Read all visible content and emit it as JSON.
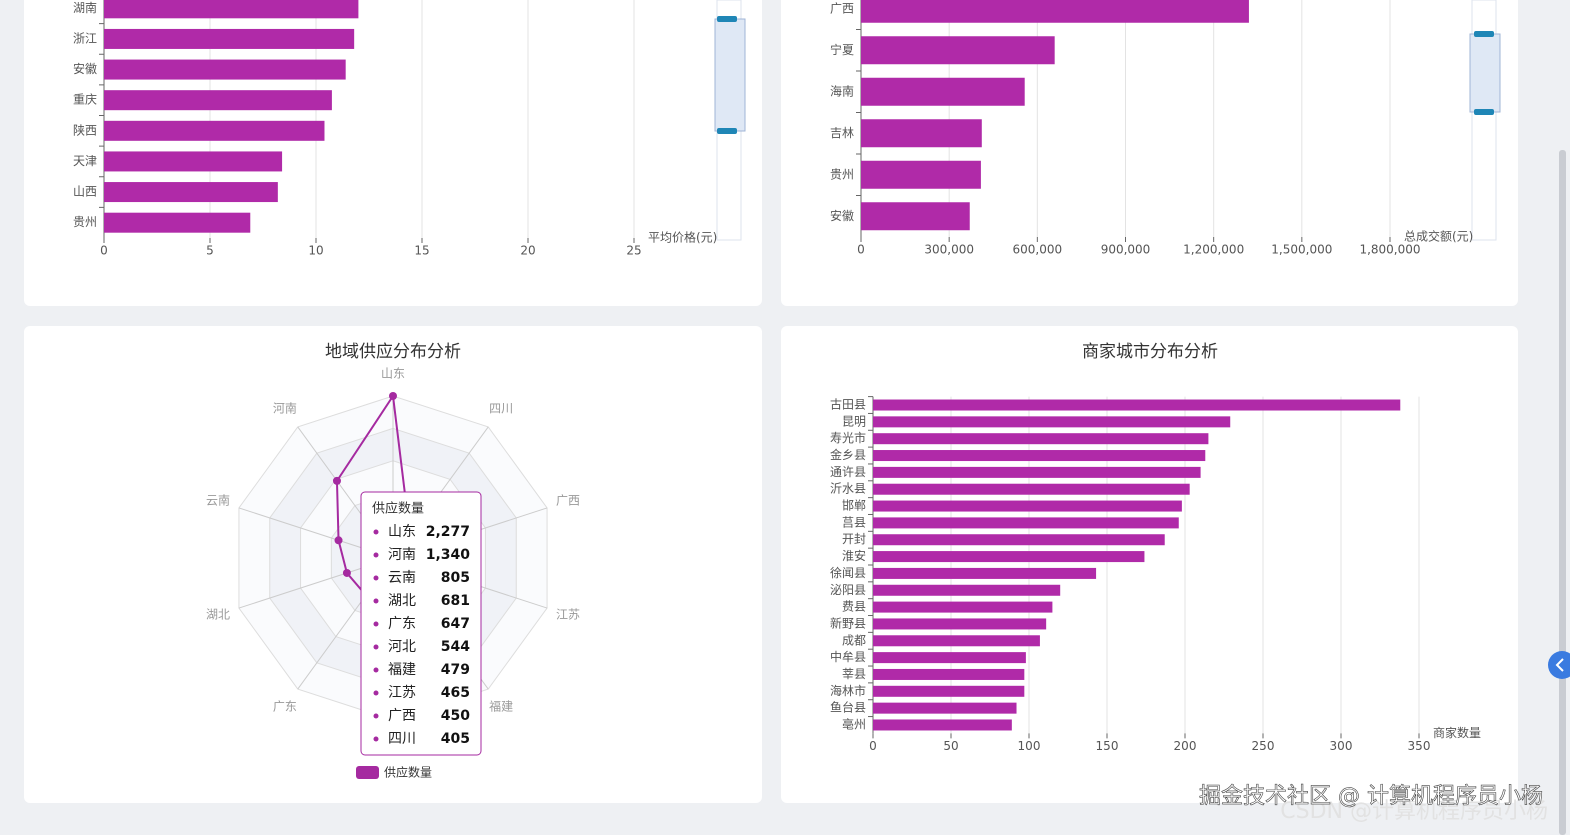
{
  "chart_data": [
    {
      "type": "hbar",
      "categories": [
        "湖南",
        "浙江",
        "安徽",
        "重庆",
        "陕西",
        "天津",
        "山西",
        "贵州"
      ],
      "values": [
        12.0,
        11.8,
        11.4,
        10.75,
        10.4,
        8.4,
        8.2,
        6.9
      ],
      "color": "#b02aa8",
      "xlim": [
        0,
        25
      ],
      "xticks": [
        0,
        5,
        10,
        15,
        20,
        25
      ],
      "x_label": "平均价格(元)",
      "grid": true
    },
    {
      "type": "hbar",
      "categories": [
        "广西",
        "宁夏",
        "海南",
        "吉林",
        "贵州",
        "安徽"
      ],
      "values": [
        1320000,
        659000,
        557000,
        411000,
        408000,
        370000
      ],
      "color": "#b02aa8",
      "xlim": [
        0,
        1800000
      ],
      "xticks": [
        0,
        {
          "value": 300000,
          "label": "300,000"
        },
        {
          "value": 600000,
          "label": "600,000"
        },
        {
          "value": 900000,
          "label": "900,000"
        },
        {
          "value": 1200000,
          "label": "1,200,000"
        },
        {
          "value": 1500000,
          "label": "1,500,000"
        },
        {
          "value": 1800000,
          "label": "1,800,000"
        }
      ],
      "x_label": "总成交额(元)",
      "grid": true
    },
    {
      "type": "radar",
      "title": "地域供应分布分析",
      "categories": [
        "山东",
        "河南",
        "云南",
        "湖北",
        "广东",
        "河北",
        "福建",
        "江苏",
        "广西",
        "四川"
      ],
      "series": [
        {
          "name": "供应数量",
          "color": "#a52aa0",
          "values": [
            2277,
            1340,
            805,
            681,
            647,
            544,
            479,
            465,
            450,
            405
          ],
          "value_labels": [
            "2,277",
            "1,340",
            "805",
            "681",
            "647",
            "544",
            "479",
            "465",
            "450",
            "405"
          ]
        }
      ]
    },
    {
      "type": "hbar",
      "title": "商家城市分布分析",
      "categories": [
        "古田县",
        "昆明",
        "寿光市",
        "金乡县",
        "通许县",
        "沂水县",
        "邯郸",
        "莒县",
        "开封",
        "淮安",
        "徐闻县",
        "泌阳县",
        "费县",
        "新野县",
        "成都",
        "中牟县",
        "莘县",
        "海林市",
        "鱼台县",
        "亳州"
      ],
      "values": [
        338,
        229,
        215,
        213,
        210,
        203,
        198,
        196,
        187,
        174,
        143,
        120,
        115,
        111,
        107,
        98,
        97,
        97,
        92,
        89
      ],
      "color": "#b02aa8",
      "xlim": [
        0,
        350
      ],
      "xticks": [
        0,
        50,
        100,
        150,
        200,
        250,
        300,
        350
      ],
      "x_label": "商家数量",
      "grid": true
    }
  ],
  "watermarks": [
    "掘金技术社区 @ 计算机程序员小杨",
    "CSDN @计算机程序员小杨"
  ]
}
